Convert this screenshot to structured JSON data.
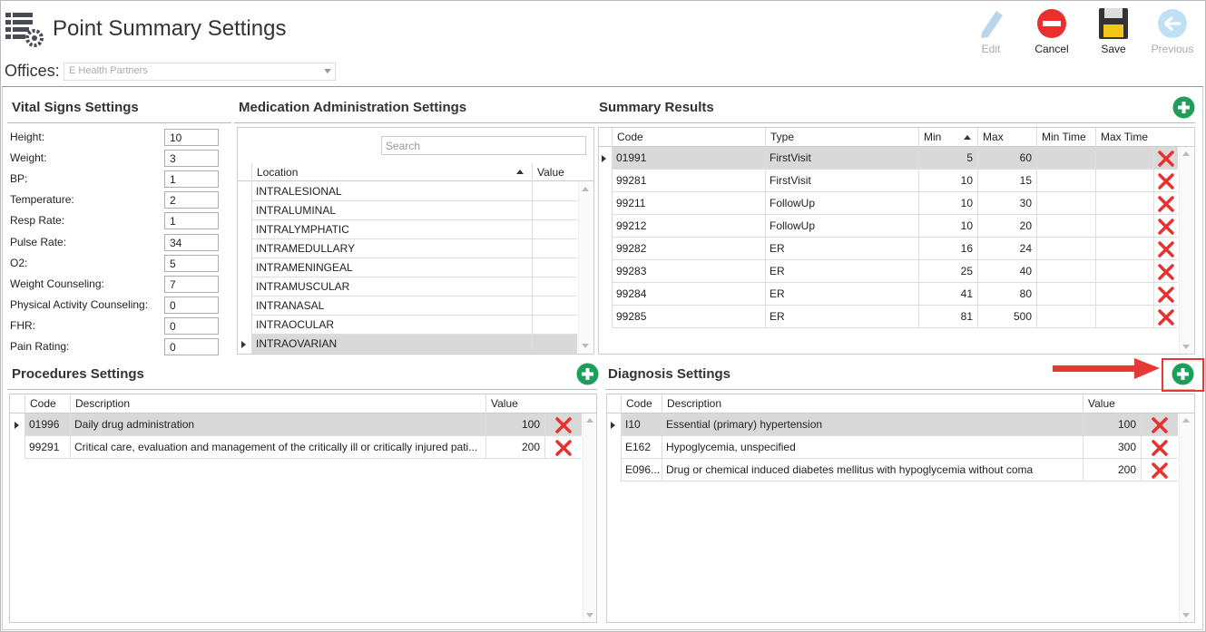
{
  "header": {
    "title": "Point Summary Settings",
    "toolbar": [
      "Edit",
      "Cancel",
      "Save",
      "Previous"
    ]
  },
  "offices": {
    "label": "Offices:",
    "value": "E Health Partners"
  },
  "vital_signs": {
    "title": "Vital Signs Settings",
    "fields": [
      {
        "label": "Height:",
        "value": 10
      },
      {
        "label": "Weight:",
        "value": 3
      },
      {
        "label": "BP:",
        "value": 1
      },
      {
        "label": "Temperature:",
        "value": 2
      },
      {
        "label": "Resp Rate:",
        "value": 1
      },
      {
        "label": "Pulse Rate:",
        "value": 34
      },
      {
        "label": "O2:",
        "value": 5
      },
      {
        "label": "Weight Counseling:",
        "value": 7
      },
      {
        "label": "Physical Activity Counseling:",
        "value": 0
      },
      {
        "label": "FHR:",
        "value": 0
      },
      {
        "label": "Pain Rating:",
        "value": 0
      }
    ]
  },
  "medication": {
    "title": "Medication Administration Settings",
    "search_placeholder": "Search",
    "columns": [
      "Location",
      "Value"
    ],
    "rows": [
      "INTRALESIONAL",
      "INTRALUMINAL",
      "INTRALYMPHATIC",
      "INTRAMEDULLARY",
      "INTRAMENINGEAL",
      "INTRAMUSCULAR",
      "INTRANASAL",
      "INTRAOCULAR",
      "INTRAOVARIAN"
    ]
  },
  "summary_results": {
    "title": "Summary Results",
    "columns": [
      "Code",
      "Type",
      "Min",
      "Max",
      "Min Time",
      "Max Time"
    ],
    "rows": [
      {
        "code": "01991",
        "type": "FirstVisit",
        "min": 5,
        "max": 60
      },
      {
        "code": "99281",
        "type": "FirstVisit",
        "min": 10,
        "max": 15
      },
      {
        "code": "99211",
        "type": "FollowUp",
        "min": 10,
        "max": 30
      },
      {
        "code": "99212",
        "type": "FollowUp",
        "min": 10,
        "max": 20
      },
      {
        "code": "99282",
        "type": "ER",
        "min": 16,
        "max": 24
      },
      {
        "code": "99283",
        "type": "ER",
        "min": 25,
        "max": 40
      },
      {
        "code": "99284",
        "type": "ER",
        "min": 41,
        "max": 80
      },
      {
        "code": "99285",
        "type": "ER",
        "min": 81,
        "max": 500
      }
    ]
  },
  "procedures": {
    "title": "Procedures Settings",
    "columns": [
      "Code",
      "Description",
      "Value"
    ],
    "rows": [
      {
        "code": "01996",
        "description": "Daily drug administration",
        "value": 100
      },
      {
        "code": "99291",
        "description": "Critical care, evaluation and management of the critically ill or critically injured pati...",
        "value": 200
      }
    ]
  },
  "diagnosis": {
    "title": "Diagnosis Settings",
    "columns": [
      "Code",
      "Description",
      "Value"
    ],
    "rows": [
      {
        "code": "I10",
        "description": "Essential (primary) hypertension",
        "value": 100
      },
      {
        "code": "E162",
        "description": "Hypoglycemia, unspecified",
        "value": 300
      },
      {
        "code": "E096...",
        "description": "Drug or chemical induced diabetes mellitus with hypoglycemia without coma",
        "value": 200
      }
    ]
  }
}
